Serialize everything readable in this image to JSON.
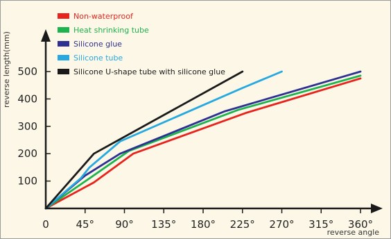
{
  "chart_data": {
    "type": "line",
    "xlabel": "reverse angle",
    "ylabel": "reverse length(mm)",
    "xlim": [
      0,
      360
    ],
    "ylim": [
      0,
      500
    ],
    "x_ticks": [
      0,
      45,
      90,
      135,
      180,
      225,
      270,
      315,
      360
    ],
    "x_tick_labels": [
      "0",
      "45°",
      "90°",
      "135°",
      "180°",
      "225°",
      "270°",
      "315°",
      "360°"
    ],
    "y_ticks": [
      100,
      200,
      300,
      400,
      500
    ],
    "y_tick_labels": [
      "100",
      "200",
      "300",
      "400",
      "500"
    ],
    "grid": false,
    "legend_position": "top-left",
    "series": [
      {
        "name": "Non-waterproof",
        "color": "#e8231d",
        "legend_text_color": "#e8231d",
        "points": [
          [
            0,
            0
          ],
          [
            55,
            95
          ],
          [
            100,
            200
          ],
          [
            230,
            350
          ],
          [
            360,
            475
          ]
        ]
      },
      {
        "name": "Heat shrinking tube",
        "color": "#1db34f",
        "legend_text_color": "#1db34f",
        "points": [
          [
            0,
            0
          ],
          [
            50,
            110
          ],
          [
            95,
            210
          ],
          [
            220,
            360
          ],
          [
            360,
            485
          ]
        ]
      },
      {
        "name": "Silicone glue",
        "color": "#2e3192",
        "legend_text_color": "#2e3192",
        "points": [
          [
            0,
            0
          ],
          [
            45,
            120
          ],
          [
            85,
            200
          ],
          [
            205,
            355
          ],
          [
            360,
            500
          ]
        ]
      },
      {
        "name": "Silicone tube",
        "color": "#25a9e0",
        "legend_text_color": "#25a9e0",
        "points": [
          [
            0,
            0
          ],
          [
            40,
            110
          ],
          [
            50,
            150
          ],
          [
            85,
            245
          ],
          [
            225,
            440
          ],
          [
            270,
            500
          ]
        ]
      },
      {
        "name": "Silicone U-shape tube with silicone glue",
        "color": "#1a1a1a",
        "legend_text_color": "#1a1a1a",
        "points": [
          [
            0,
            0
          ],
          [
            55,
            200
          ],
          [
            225,
            500
          ]
        ]
      }
    ]
  }
}
